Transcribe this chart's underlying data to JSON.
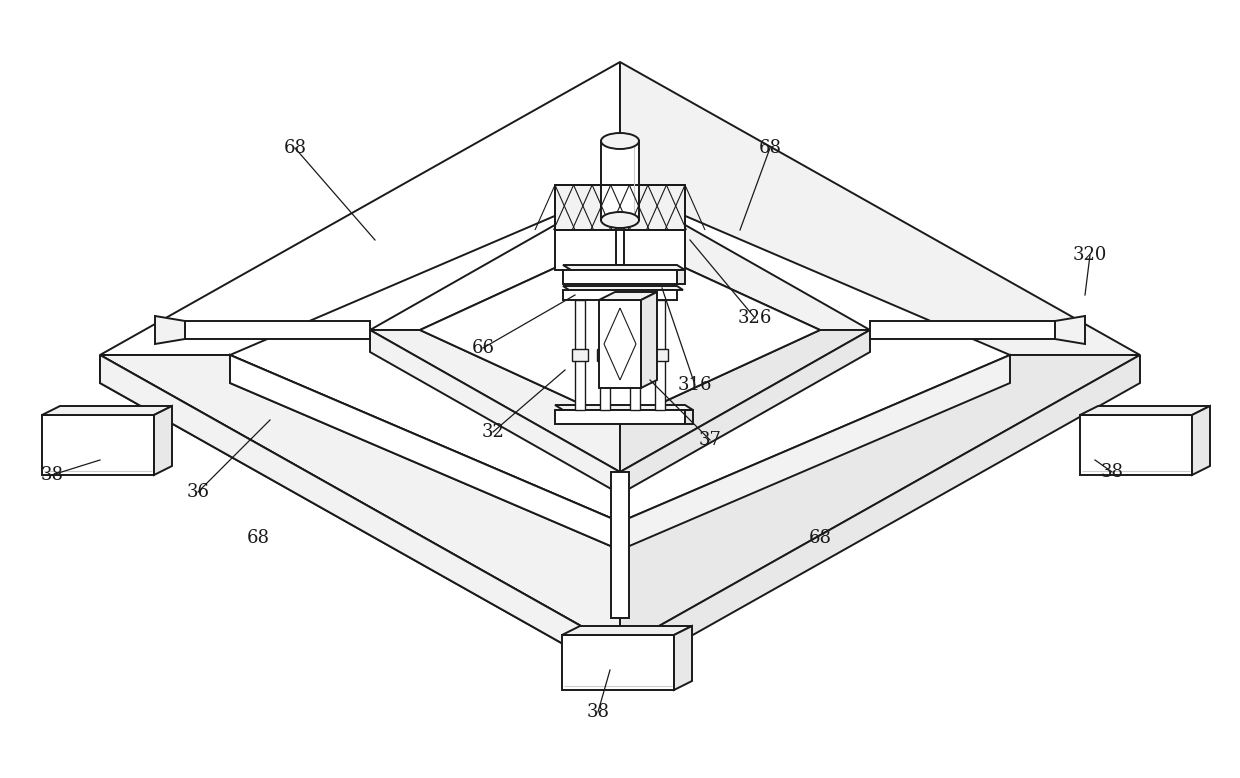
{
  "bg_color": "#ffffff",
  "line_color": "#1a1a1a",
  "lw_main": 1.4,
  "lw_thin": 0.8,
  "face_white": "#ffffff",
  "face_light": "#f2f2f2",
  "face_mid": "#e8e8e8",
  "font_size": 13,
  "font_family": "DejaVu Serif"
}
